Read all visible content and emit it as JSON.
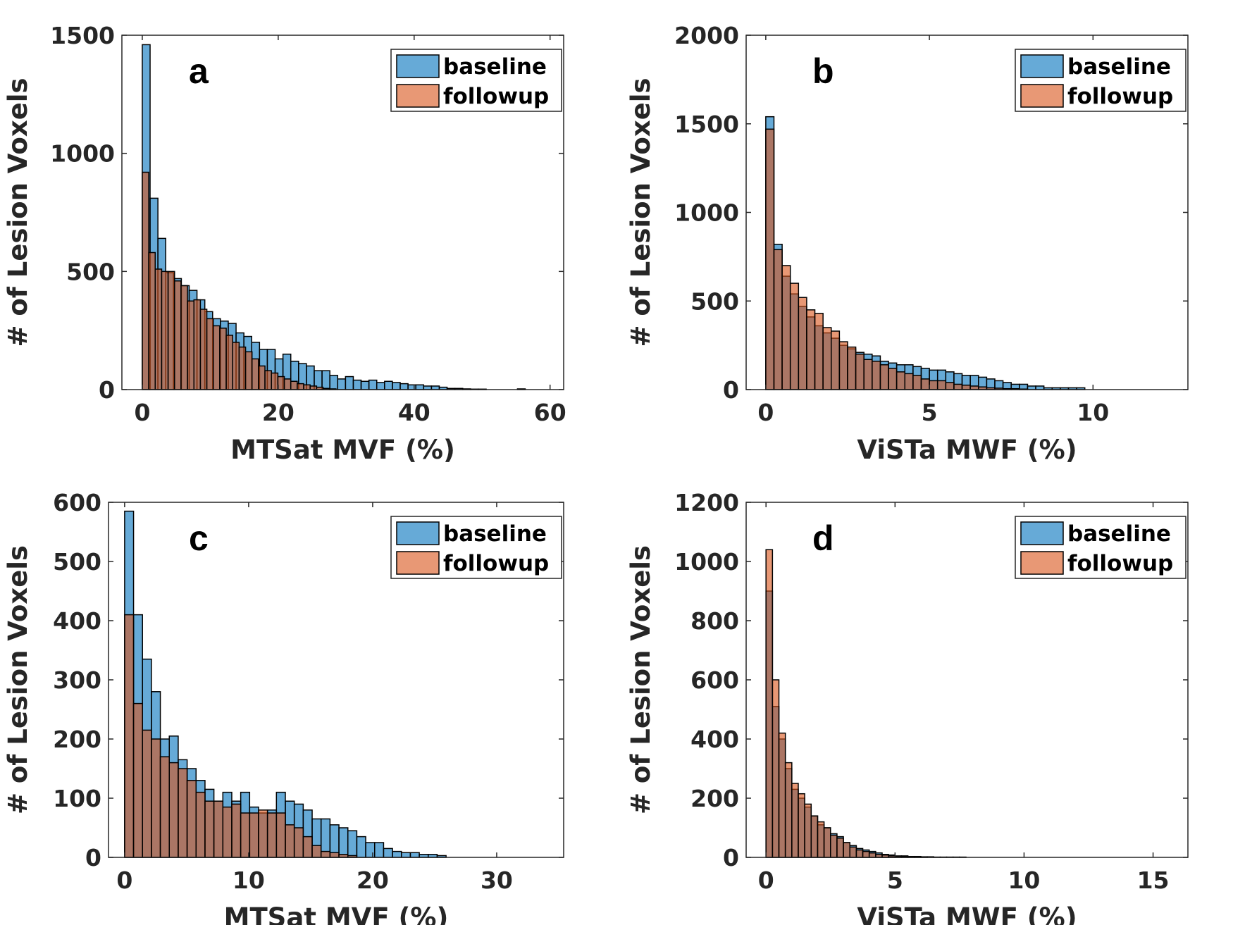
{
  "colors": {
    "baseline": "#0072BD",
    "followup": "#D95319",
    "alpha": 0.6
  },
  "chart_data": [
    {
      "type": "bar",
      "panel_label": "a",
      "xlabel": "MTSat MVF (%)",
      "ylabel": "# of Lesion Voxels",
      "xlim": [
        -3,
        62
      ],
      "ylim": [
        0,
        1500
      ],
      "xticks": [
        0,
        20,
        40,
        60
      ],
      "yticks": [
        0,
        500,
        1000,
        1500
      ],
      "legend": {
        "placement": "top-right",
        "entries": [
          "baseline",
          "followup"
        ]
      },
      "series": [
        {
          "name": "baseline",
          "bin_width": 1.15,
          "values": [
            1460,
            810,
            640,
            495,
            470,
            440,
            420,
            380,
            330,
            300,
            290,
            280,
            240,
            225,
            200,
            170,
            170,
            130,
            150,
            120,
            110,
            100,
            80,
            80,
            60,
            45,
            55,
            40,
            35,
            40,
            30,
            35,
            30,
            25,
            20,
            20,
            15,
            15,
            10,
            5,
            5,
            3,
            2,
            2,
            0,
            0,
            0,
            0,
            3
          ]
        },
        {
          "name": "followup",
          "bin_width": 0.95,
          "values": [
            920,
            580,
            510,
            500,
            500,
            460,
            440,
            375,
            380,
            340,
            300,
            270,
            260,
            230,
            200,
            180,
            160,
            130,
            100,
            80,
            70,
            55,
            45,
            35,
            25,
            20,
            15,
            10,
            5,
            3
          ]
        }
      ]
    },
    {
      "type": "bar",
      "panel_label": "b",
      "xlabel": "ViSTa MWF (%)",
      "ylabel": "# of Lesion Voxels",
      "xlim": [
        -0.6,
        12.9
      ],
      "ylim": [
        0,
        2000
      ],
      "xticks": [
        0,
        5,
        10
      ],
      "yticks": [
        0,
        500,
        1000,
        1500,
        2000
      ],
      "legend": {
        "placement": "top-right",
        "entries": [
          "baseline",
          "followup"
        ]
      },
      "series": [
        {
          "name": "baseline",
          "bin_width": 0.25,
          "values": [
            1540,
            820,
            640,
            540,
            470,
            410,
            360,
            320,
            290,
            250,
            230,
            210,
            200,
            190,
            160,
            150,
            140,
            140,
            130,
            120,
            110,
            110,
            100,
            90,
            80,
            80,
            70,
            60,
            50,
            40,
            30,
            30,
            20,
            20,
            10,
            10,
            10,
            10,
            10
          ]
        },
        {
          "name": "followup",
          "bin_width": 0.25,
          "values": [
            1470,
            790,
            700,
            600,
            520,
            450,
            430,
            350,
            330,
            270,
            240,
            200,
            170,
            160,
            140,
            120,
            100,
            90,
            80,
            60,
            50,
            50,
            40,
            30,
            25,
            20,
            15,
            10,
            8,
            5,
            5,
            3
          ]
        }
      ]
    },
    {
      "type": "bar",
      "panel_label": "c",
      "xlabel": "MTSat MVF (%)",
      "ylabel": "# of Lesion Voxels",
      "xlim": [
        -1.3,
        35.4
      ],
      "ylim": [
        0,
        600
      ],
      "xticks": [
        0,
        10,
        20,
        30
      ],
      "yticks": [
        0,
        100,
        200,
        300,
        400,
        500,
        600
      ],
      "legend": {
        "placement": "top-right",
        "entries": [
          "baseline",
          "followup"
        ]
      },
      "series": [
        {
          "name": "baseline",
          "bin_width": 0.72,
          "values": [
            585,
            410,
            335,
            280,
            200,
            205,
            165,
            150,
            130,
            115,
            95,
            110,
            95,
            110,
            85,
            75,
            80,
            110,
            95,
            90,
            80,
            65,
            65,
            55,
            50,
            45,
            35,
            25,
            25,
            15,
            10,
            8,
            8,
            5,
            5,
            3
          ]
        },
        {
          "name": "followup",
          "bin_width": 0.72,
          "values": [
            410,
            260,
            215,
            200,
            170,
            160,
            150,
            130,
            110,
            95,
            95,
            85,
            90,
            75,
            75,
            80,
            75,
            75,
            55,
            50,
            35,
            20,
            10,
            8,
            5,
            3
          ]
        }
      ]
    },
    {
      "type": "bar",
      "panel_label": "d",
      "xlabel": "ViSTa MWF (%)",
      "ylabel": "# of Lesion Voxels",
      "xlim": [
        -0.77,
        16.35
      ],
      "ylim": [
        0,
        1200
      ],
      "xticks": [
        0,
        5,
        10,
        15
      ],
      "yticks": [
        0,
        200,
        400,
        600,
        800,
        1000,
        1200
      ],
      "legend": {
        "placement": "top-right",
        "entries": [
          "baseline",
          "followup"
        ]
      },
      "series": [
        {
          "name": "baseline",
          "bin_width": 0.25,
          "values": [
            900,
            510,
            400,
            300,
            230,
            200,
            170,
            140,
            110,
            100,
            80,
            70,
            50,
            40,
            30,
            25,
            20,
            15,
            10,
            8,
            5,
            5,
            3,
            3,
            2,
            2,
            1,
            1,
            1,
            1,
            1
          ]
        },
        {
          "name": "followup",
          "bin_width": 0.25,
          "values": [
            1040,
            600,
            420,
            320,
            250,
            215,
            180,
            140,
            120,
            100,
            75,
            65,
            50,
            35,
            25,
            20,
            15,
            10,
            8,
            5,
            4,
            3,
            2,
            2,
            1
          ]
        }
      ]
    }
  ]
}
